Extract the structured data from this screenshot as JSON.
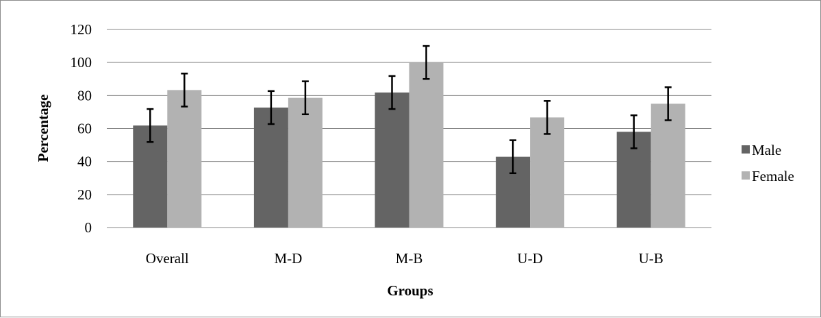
{
  "chart_data": {
    "type": "bar",
    "xlabel": "Groups",
    "ylabel": "Percentage",
    "ylim": [
      0,
      120
    ],
    "yticks": [
      "0",
      "20",
      "40",
      "60",
      "80",
      "100",
      "120"
    ],
    "categories": [
      "Overall",
      "M-D",
      "M-B",
      "U-D",
      "U-B"
    ],
    "series": [
      {
        "name": "Male",
        "values": [
          61.8,
          72.7,
          81.8,
          42.9,
          58.0
        ],
        "error": 10
      },
      {
        "name": "Female",
        "values": [
          83.3,
          78.6,
          100,
          66.7,
          75.0
        ],
        "error": 10
      }
    ],
    "error_bars": true,
    "grid": "horizontal",
    "legend": "right",
    "colors": {
      "Male": "#646464",
      "Female": "#b2b2b2",
      "grid": "#878787",
      "error": "#000000"
    }
  }
}
